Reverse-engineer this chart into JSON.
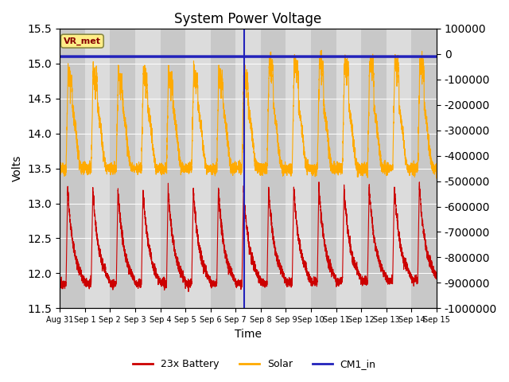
{
  "title": "System Power Voltage",
  "xlabel": "Time",
  "ylabel": "Volts",
  "ylim_left": [
    11.5,
    15.5
  ],
  "ylim_right": [
    -1000000,
    100000
  ],
  "yticks_right": [
    100000,
    0,
    -100000,
    -200000,
    -300000,
    -400000,
    -500000,
    -600000,
    -700000,
    -800000,
    -900000,
    -1000000
  ],
  "yticks_left": [
    11.5,
    12.0,
    12.5,
    13.0,
    13.5,
    14.0,
    14.5,
    15.0,
    15.5
  ],
  "background_color": "#ffffff",
  "plot_bg_color": "#dcdcdc",
  "stripe_color": "#c8c8c8",
  "vr_met_label": "VR_met",
  "vr_met_color": "#880000",
  "vr_met_bg": "#ffee88",
  "cm1_value": 15.1,
  "cm1_color": "#2222bb",
  "cm1_lw": 2.5,
  "vline_day": 7.35,
  "vline_color": "#2222bb",
  "vline_lw": 1.5,
  "battery_color": "#cc0000",
  "solar_color": "#ffaa00",
  "n_points": 5000,
  "total_days": 15,
  "figsize": [
    6.4,
    4.8
  ],
  "dpi": 100,
  "tick_labels": [
    "Aug 31",
    "Sep 1",
    "Sep 2",
    "Sep 3",
    "Sep 4",
    "Sep 5",
    "Sep 6",
    "Sep 7",
    "Sep 8",
    "Sep 9",
    "Sep 10",
    "Sep 11",
    "Sep 12",
    "Sep 13",
    "Sep 14",
    "Sep 15"
  ]
}
